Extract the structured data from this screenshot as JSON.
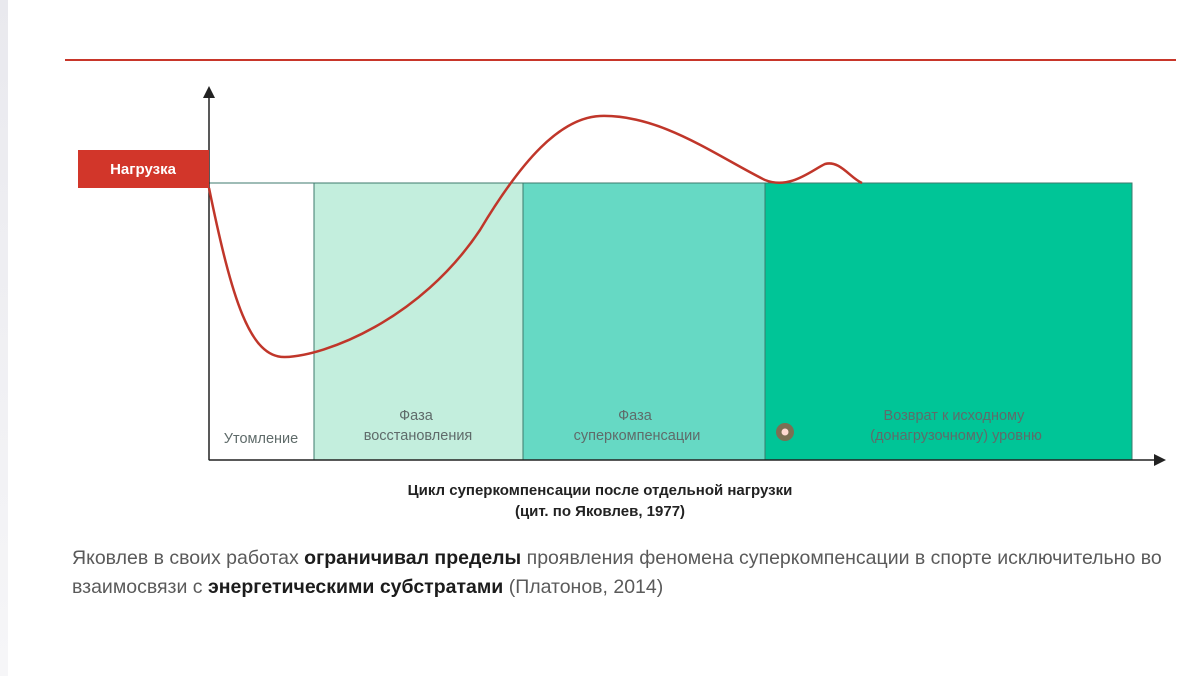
{
  "colors": {
    "accent": "#c8362a",
    "phase1": "#ffffff",
    "phase2": "#c3eedd",
    "phase3": "#66d9c4",
    "phase4": "#00c597"
  },
  "diagram": {
    "load_label": "Нагрузка",
    "phases": [
      {
        "lines": [
          "Утомление"
        ]
      },
      {
        "lines": [
          "Фаза",
          "восстановления"
        ]
      },
      {
        "lines": [
          "Фаза",
          "суперкомпенсации"
        ]
      },
      {
        "lines": [
          "Возврат к исходному",
          "(донагрузочному) уровню"
        ]
      }
    ]
  },
  "caption": {
    "line1": "Цикл суперкомпенсации после отдельной нагрузки",
    "line2": "(цит. по Яковлев, 1977)"
  },
  "paragraph": {
    "part1": "Яковлев в своих работах ",
    "bold1": "ограничивал пределы",
    "part2": " проявления феномена суперкомпенсации в спорте исключительно во взаимосвязи с ",
    "bold2": "энергетическими субстратами",
    "part3": " (Платонов, 2014)"
  }
}
